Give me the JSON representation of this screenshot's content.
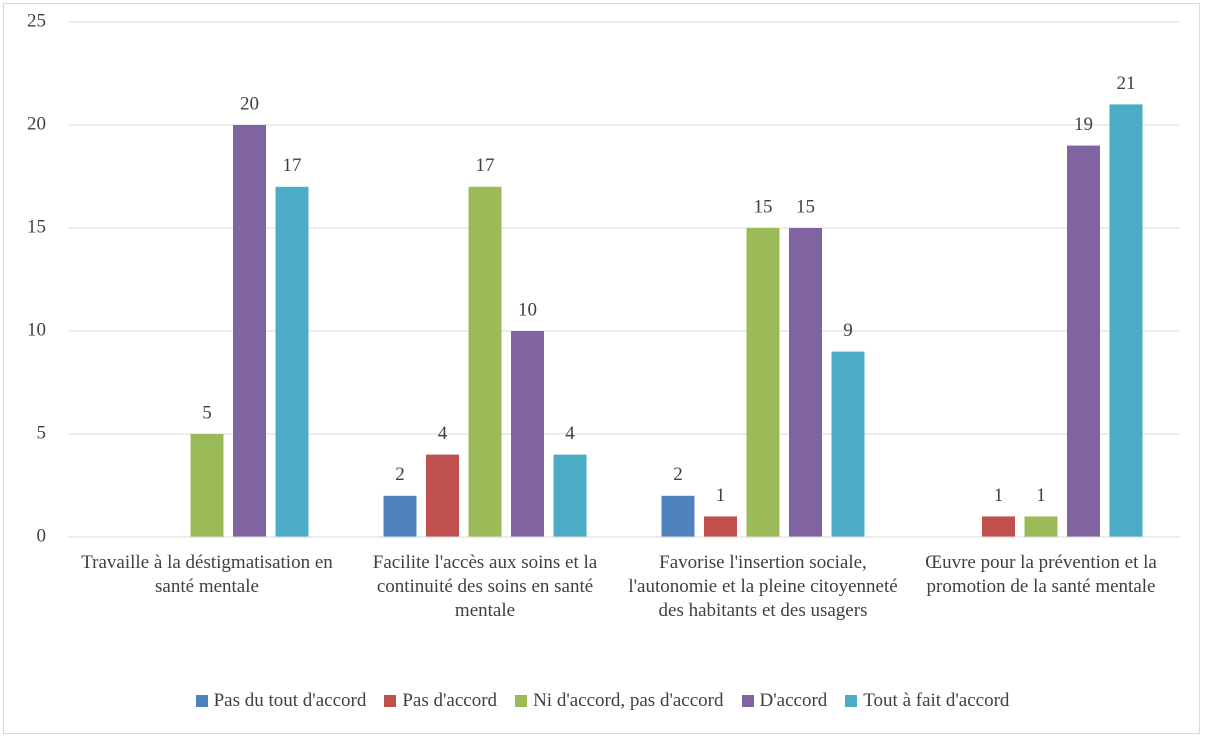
{
  "chart_data": {
    "type": "bar",
    "categories": [
      "Travaille à la déstigmatisation en santé mentale",
      "Facilite l'accès aux soins et la continuité des soins en santé mentale",
      "Favorise l'insertion sociale, l'autonomie et la pleine citoyenneté des habitants et des usagers",
      "Œuvre pour la prévention et la promotion de la santé mentale"
    ],
    "series": [
      {
        "name": "Pas du tout d'accord",
        "color": "#4f81bd",
        "values": [
          null,
          2,
          2,
          null
        ]
      },
      {
        "name": "Pas d'accord",
        "color": "#c0504d",
        "values": [
          null,
          4,
          1,
          1
        ]
      },
      {
        "name": "Ni d'accord, pas d'accord",
        "color": "#9bbb59",
        "values": [
          5,
          17,
          15,
          1
        ]
      },
      {
        "name": "D'accord",
        "color": "#8064a2",
        "values": [
          20,
          10,
          15,
          19
        ]
      },
      {
        "name": "Tout à fait d'accord",
        "color": "#4bacc6",
        "values": [
          17,
          4,
          9,
          21
        ]
      }
    ],
    "ylim": [
      0,
      25
    ],
    "yticks": [
      0,
      5,
      10,
      15,
      20,
      25
    ],
    "grid": true,
    "legend": "bottom"
  }
}
